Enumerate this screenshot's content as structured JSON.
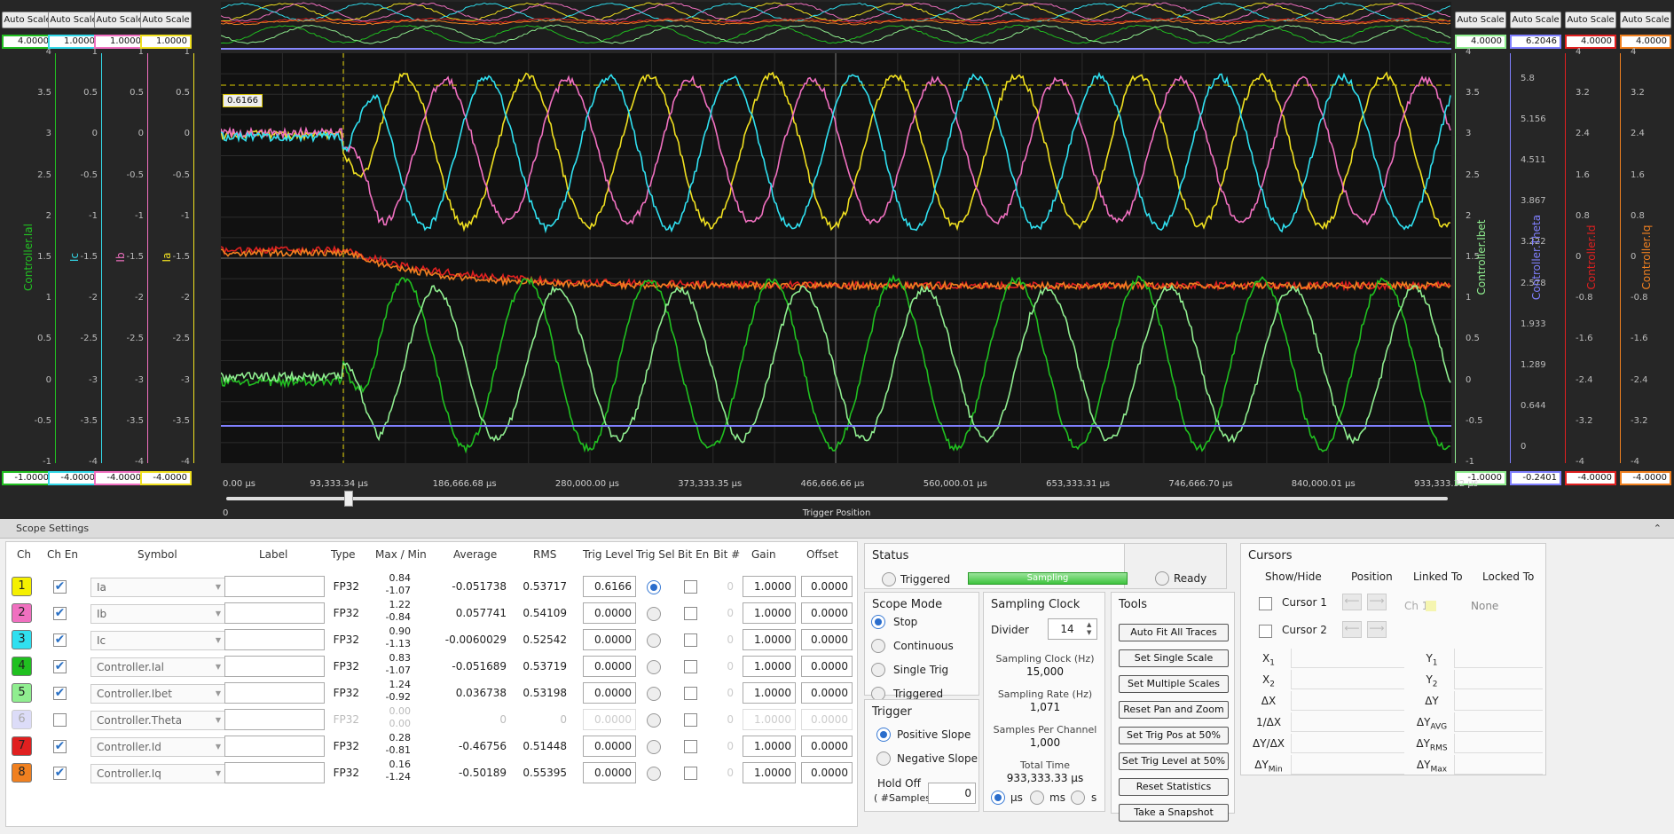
{
  "left_axes": [
    {
      "auto_scale": "Auto Scale",
      "scale_max": "4.0000",
      "scale_min": "-1.0000",
      "name": "Controller.Ial",
      "color": "#22c022",
      "ticks": [
        "4",
        "3.5",
        "3",
        "2.5",
        "2",
        "1.5",
        "1",
        "0.5",
        "0",
        "-0.5",
        "-1"
      ]
    },
    {
      "auto_scale": "Auto Scale",
      "scale_max": "1.0000",
      "scale_min": "-4.0000",
      "name": "Ic",
      "color": "#33d8e8",
      "ticks": [
        "1",
        "0.5",
        "0",
        "-0.5",
        "-1",
        "-1.5",
        "-2",
        "-2.5",
        "-3",
        "-3.5",
        "-4"
      ]
    },
    {
      "auto_scale": "Auto Scale",
      "scale_max": "1.0000",
      "scale_min": "-4.0000",
      "name": "Ib",
      "color": "#f070c0",
      "ticks": [
        "1",
        "0.5",
        "0",
        "-0.5",
        "-1",
        "-1.5",
        "-2",
        "-2.5",
        "-3",
        "-3.5",
        "-4"
      ]
    },
    {
      "auto_scale": "Auto Scale",
      "scale_max": "1.0000",
      "scale_min": "-4.0000",
      "name": "Ia",
      "color": "#f0e020",
      "ticks": [
        "1",
        "0.5",
        "0",
        "-0.5",
        "-1",
        "-1.5",
        "-2",
        "-2.5",
        "-3",
        "-3.5",
        "-4"
      ]
    }
  ],
  "right_axes": [
    {
      "auto_scale": "Auto Scale",
      "scale_max": "4.0000",
      "scale_min": "-1.0000",
      "name": "Controller.Ibet",
      "color": "#90ee90",
      "ticks": [
        "4",
        "3.5",
        "3",
        "2.5",
        "2",
        "1.5",
        "1",
        "0.5",
        "0",
        "-0.5",
        "-1"
      ]
    },
    {
      "auto_scale": "Auto Scale",
      "scale_max": "6.2046",
      "scale_min": "-0.2401",
      "name": "Controller.Theta",
      "color": "#8080ff",
      "ticks": [
        "5.8",
        "5.156",
        "4.511",
        "3.867",
        "3.222",
        "2.578",
        "1.933",
        "1.289",
        "0.644",
        "0"
      ]
    },
    {
      "auto_scale": "Auto Scale",
      "scale_max": "4.0000",
      "scale_min": "-4.0000",
      "name": "Controller.Id",
      "color": "#e02020",
      "ticks": [
        "4",
        "3.2",
        "2.4",
        "1.6",
        "0.8",
        "0",
        "-0.8",
        "-1.6",
        "-2.4",
        "-3.2",
        "-4"
      ]
    },
    {
      "auto_scale": "Auto Scale",
      "scale_max": "4.0000",
      "scale_min": "-4.0000",
      "name": "Controller.Iq",
      "color": "#f08020",
      "ticks": [
        "4",
        "3.2",
        "2.4",
        "1.6",
        "0.8",
        "0",
        "-0.8",
        "-1.6",
        "-2.4",
        "-3.2",
        "-4"
      ]
    }
  ],
  "trigger_value_tag": "0.6166",
  "x_ticks": [
    "0.00  µs",
    "93,333.34  µs",
    "186,666.68  µs",
    "280,000.00  µs",
    "373,333.35  µs",
    "466,666.66  µs",
    "560,000.01  µs",
    "653,333.31  µs",
    "746,666.70  µs",
    "840,000.01  µs",
    "933,333.32  µs"
  ],
  "slider_min": "0",
  "trigger_position_label": "Trigger Position",
  "scope_settings_title": "Scope Settings",
  "table_headers": {
    "ch": "Ch",
    "ch_en": "Ch En",
    "symbol": "Symbol",
    "label": "Label",
    "type": "Type",
    "maxmin": "Max / Min",
    "average": "Average",
    "rms": "RMS",
    "trig_level": "Trig Level",
    "trig_sel": "Trig Sel",
    "bit_en": "Bit En",
    "bit_num": "Bit #",
    "gain": "Gain",
    "offset": "Offset"
  },
  "channels": [
    {
      "num": "1",
      "color": "#f5f000",
      "enabled": true,
      "symbol": "Ia",
      "type": "FP32",
      "max": "0.84",
      "min": "-1.07",
      "average": "-0.051738",
      "rms": "0.53717",
      "trig_level": "0.6166",
      "trig_sel": true,
      "bit": "0",
      "gain": "1.0000",
      "offset": "0.0000"
    },
    {
      "num": "2",
      "color": "#f070c0",
      "enabled": true,
      "symbol": "Ib",
      "type": "FP32",
      "max": "1.22",
      "min": "-0.84",
      "average": "0.057741",
      "rms": "0.54109",
      "trig_level": "0.0000",
      "trig_sel": false,
      "bit": "0",
      "gain": "1.0000",
      "offset": "0.0000"
    },
    {
      "num": "3",
      "color": "#30e0f0",
      "enabled": true,
      "symbol": "Ic",
      "type": "FP32",
      "max": "0.90",
      "min": "-1.13",
      "average": "-0.0060029",
      "rms": "0.52542",
      "trig_level": "0.0000",
      "trig_sel": false,
      "bit": "0",
      "gain": "1.0000",
      "offset": "0.0000"
    },
    {
      "num": "4",
      "color": "#20c020",
      "enabled": true,
      "symbol": "Controller.Ial",
      "type": "FP32",
      "max": "0.83",
      "min": "-1.07",
      "average": "-0.051689",
      "rms": "0.53719",
      "trig_level": "0.0000",
      "trig_sel": false,
      "bit": "0",
      "gain": "1.0000",
      "offset": "0.0000"
    },
    {
      "num": "5",
      "color": "#90ee90",
      "enabled": true,
      "symbol": "Controller.Ibet",
      "type": "FP32",
      "max": "1.24",
      "min": "-0.92",
      "average": "0.036738",
      "rms": "0.53198",
      "trig_level": "0.0000",
      "trig_sel": false,
      "bit": "0",
      "gain": "1.0000",
      "offset": "0.0000"
    },
    {
      "num": "6",
      "color": "#dcdcf8",
      "enabled": false,
      "symbol": "Controller.Theta",
      "type": "FP32",
      "max": "0.00",
      "min": "0.00",
      "average": "0",
      "rms": "0",
      "trig_level": "0.0000",
      "trig_sel": false,
      "bit": "0",
      "gain": "1.0000",
      "offset": "0.0000"
    },
    {
      "num": "7",
      "color": "#e02020",
      "enabled": true,
      "symbol": "Controller.Id",
      "type": "FP32",
      "max": "0.28",
      "min": "-0.81",
      "average": "-0.46756",
      "rms": "0.51448",
      "trig_level": "0.0000",
      "trig_sel": false,
      "bit": "0",
      "gain": "1.0000",
      "offset": "0.0000"
    },
    {
      "num": "8",
      "color": "#f08020",
      "enabled": true,
      "symbol": "Controller.Iq",
      "type": "FP32",
      "max": "0.16",
      "min": "-1.24",
      "average": "-0.50189",
      "rms": "0.55395",
      "trig_level": "0.0000",
      "trig_sel": false,
      "bit": "0",
      "gain": "1.0000",
      "offset": "0.0000"
    }
  ],
  "status": {
    "title": "Status",
    "triggered": "Triggered",
    "sampling": "Sampling",
    "ready": "Ready"
  },
  "scope_mode": {
    "title": "Scope Mode",
    "options": [
      "Stop",
      "Continuous",
      "Single Trig",
      "Triggered"
    ],
    "selected": "Stop"
  },
  "trigger": {
    "title": "Trigger",
    "positive": "Positive Slope",
    "negative": "Negative Slope",
    "selected": "Positive Slope",
    "holdoff_label1": "Hold Off",
    "holdoff_label2": "( #Samples )",
    "holdoff_value": "0"
  },
  "sampling_clock": {
    "title": "Sampling Clock",
    "divider_label": "Divider",
    "divider_value": "14",
    "clock_label": "Sampling Clock (Hz)",
    "clock_value": "15,000",
    "rate_label": "Sampling Rate (Hz)",
    "rate_value": "1,071",
    "spc_label": "Samples Per Channel",
    "spc_value": "1,000",
    "total_label": "Total Time",
    "total_value": "933,333.33 µs",
    "units": [
      "µs",
      "ms",
      "s"
    ],
    "unit_selected": "µs"
  },
  "tools": {
    "title": "Tools",
    "buttons": [
      "Auto Fit All Traces",
      "Set Single Scale",
      "Set Multiple Scales",
      "Reset Pan and Zoom",
      "Set Trig Pos at 50%",
      "Set Trig Level at 50%",
      "Reset Statistics",
      "Take a Snapshot"
    ]
  },
  "cursors": {
    "title": "Cursors",
    "headers": [
      "Show/Hide",
      "Position",
      "Linked To",
      "Locked To"
    ],
    "rows": [
      {
        "name": "Cursor 1",
        "linked": "Ch 1",
        "locked": "None"
      },
      {
        "name": "Cursor 2"
      }
    ],
    "measures_left": [
      "X",
      "X",
      "ΔX",
      "1/ΔX",
      "ΔY/ΔX",
      "ΔY"
    ],
    "measures_left_sub": [
      "1",
      "2",
      "",
      "",
      "",
      "Min"
    ],
    "measures_right": [
      "Y",
      "Y",
      "ΔY",
      "ΔY",
      "ΔY",
      "ΔY"
    ],
    "measures_right_sub": [
      "1",
      "2",
      "",
      "AVG",
      "RMS",
      "Max"
    ]
  }
}
